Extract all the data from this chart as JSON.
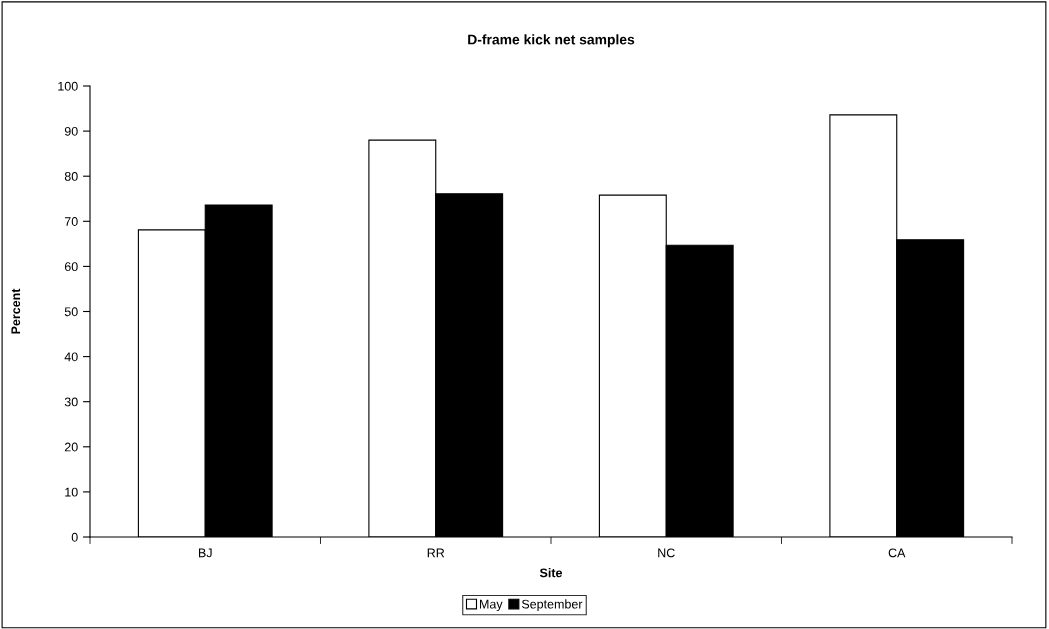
{
  "chart_data": {
    "type": "bar",
    "title": "D-frame kick net samples",
    "xlabel": "Site",
    "ylabel": "Percent",
    "categories": [
      "BJ",
      "RR",
      "NC",
      "CA"
    ],
    "series": [
      {
        "name": "May",
        "color": "#ffffff",
        "values": [
          68.1,
          88.0,
          75.8,
          93.6
        ]
      },
      {
        "name": "September",
        "color": "#000000",
        "values": [
          73.6,
          76.1,
          64.7,
          65.9
        ]
      }
    ],
    "ylim": [
      0,
      100
    ],
    "yticks": [
      0,
      10,
      20,
      30,
      40,
      50,
      60,
      70,
      80,
      90,
      100
    ],
    "grid": false,
    "legend": "bottom"
  }
}
